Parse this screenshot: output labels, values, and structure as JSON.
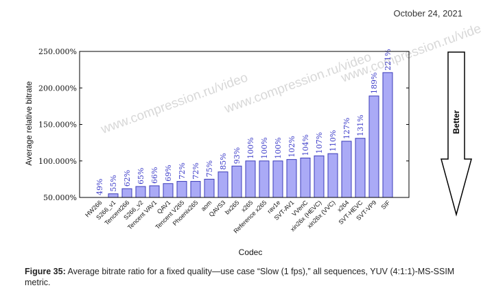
{
  "date": "October 24, 2021",
  "caption": {
    "label": "Figure 35:",
    "text": "Average bitrate ratio for a fixed quality—use case “Slow (1 fps),” all sequences, YUV (4:1:1)-MS-SSIM metric."
  },
  "better_label": "Better",
  "watermark": "www.compression.ru/video",
  "colors": {
    "bar_fill": "#aaaaf6",
    "bar_stroke": "#3b3bb8",
    "label": "#3a3ac8"
  },
  "chart_data": {
    "type": "bar",
    "title": "",
    "xlabel": "Codec",
    "ylabel": "Average relative bitrate",
    "ylim": [
      50,
      250
    ],
    "yticks": [
      50,
      100,
      150,
      200,
      250
    ],
    "ytick_labels": [
      "50.000%",
      "100.000%",
      "150.000%",
      "200.000%",
      "250.000%"
    ],
    "categories": [
      "HW266",
      "S266_v1",
      "Tencent266",
      "S266_v2",
      "Tencent VAV1",
      "QAV1",
      "Tencent V265",
      "Phoenix265",
      "aom",
      "QAVS3",
      "bx265",
      "x265",
      "Reference x265",
      "rav1e",
      "SVT-AV1",
      "VVenC",
      "xin26x (HEVC)",
      "xin26x (VVC)",
      "x264",
      "SVT-HEVC",
      "SVT-VP9",
      "SIF"
    ],
    "values": [
      49,
      55,
      62,
      65,
      66,
      69,
      72,
      72,
      75,
      85,
      93,
      100,
      100,
      100,
      102,
      104,
      107,
      110,
      127,
      131,
      189,
      221
    ],
    "data_labels": [
      "49%",
      "55%",
      "62%",
      "65%",
      "66%",
      "69%",
      "72%",
      "72%",
      "75%",
      "85%",
      "93%",
      "100%",
      "100%",
      "100%",
      "102%",
      "104%",
      "107%",
      "110%",
      "127%",
      "131%",
      "189%",
      "221%"
    ]
  }
}
